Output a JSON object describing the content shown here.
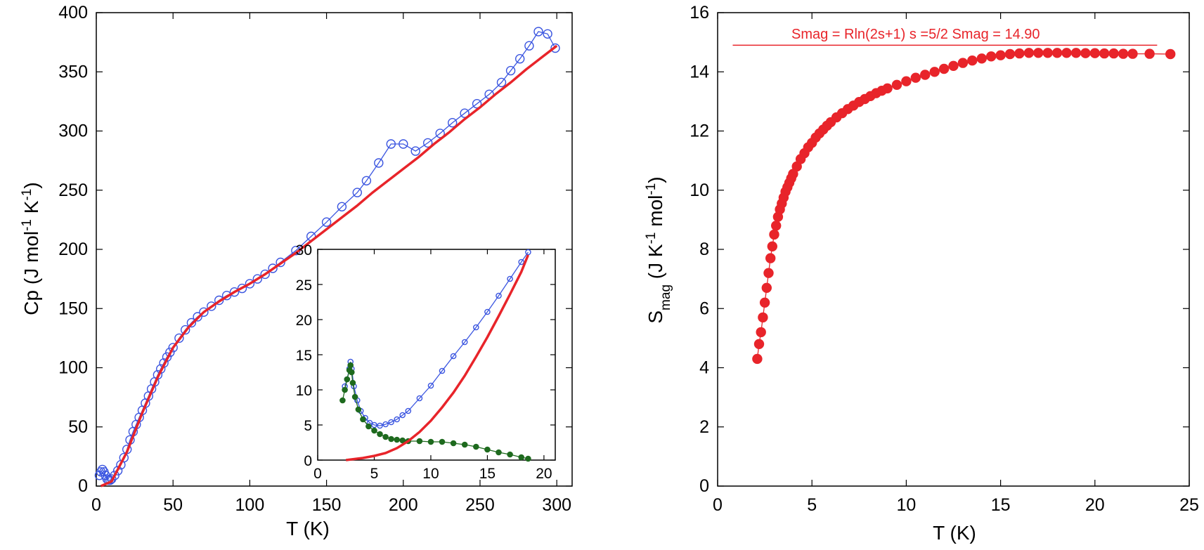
{
  "chart_data": [
    {
      "type": "scatter",
      "xlabel": "T (K)",
      "ylabel": "Cp (J mol-1 K-1)",
      "xlim": [
        0,
        310
      ],
      "ylim": [
        0,
        400
      ],
      "xticks": [
        "0",
        "50",
        "100",
        "150",
        "200",
        "250",
        "300"
      ],
      "yticks": [
        "0",
        "50",
        "100",
        "150",
        "200",
        "250",
        "300",
        "350",
        "400"
      ],
      "series": [
        {
          "color": "#3a55e0",
          "marker": "open-circle-with-line",
          "x": [
            2,
            3,
            4,
            5,
            6,
            7,
            8,
            9,
            10,
            12,
            14,
            16,
            18,
            20,
            22,
            24,
            26,
            28,
            30,
            32,
            34,
            36,
            38,
            40,
            42,
            44,
            46,
            48,
            50,
            54,
            58,
            62,
            66,
            70,
            75,
            80,
            85,
            90,
            95,
            100,
            105,
            110,
            115,
            120,
            130,
            140,
            150,
            160,
            170,
            176,
            184,
            192,
            200,
            208,
            216,
            224,
            232,
            240,
            248,
            256,
            264,
            270,
            276,
            282,
            288,
            294,
            299
          ],
          "y": [
            9,
            12,
            14,
            12,
            9,
            6,
            5,
            5,
            6,
            9,
            13,
            18,
            24,
            31,
            39,
            46,
            52,
            58,
            64,
            70,
            76,
            82,
            88,
            94,
            99,
            104,
            109,
            113,
            117,
            125,
            132,
            138,
            143,
            147,
            152,
            157,
            161,
            164,
            167,
            171,
            175,
            179,
            184,
            189,
            199,
            211,
            223,
            236,
            248,
            258,
            273,
            289,
            289,
            283,
            290,
            298,
            307,
            315,
            323,
            331,
            341,
            351,
            361,
            372,
            384,
            382,
            370
          ]
        },
        {
          "color": "#e8242a",
          "marker": "line",
          "x": [
            3,
            10,
            20,
            30,
            40,
            50,
            60,
            70,
            80,
            90,
            100,
            110,
            120,
            130,
            140,
            150,
            160,
            170,
            180,
            190,
            200,
            210,
            220,
            230,
            240,
            250,
            260,
            270,
            280,
            290,
            300
          ],
          "y": [
            0,
            4,
            29,
            62,
            92,
            117,
            134,
            147,
            156,
            164,
            171,
            179,
            188,
            197,
            207,
            217,
            227,
            237,
            248,
            258,
            268,
            278,
            289,
            299,
            310,
            320,
            331,
            341,
            352,
            362,
            372
          ]
        }
      ]
    },
    {
      "type": "scatter",
      "inset": true,
      "xlim": [
        0,
        21
      ],
      "ylim": [
        0,
        30
      ],
      "xticks": [
        "0",
        "5",
        "10",
        "15",
        "20"
      ],
      "yticks": [
        "0",
        "5",
        "10",
        "15",
        "20",
        "25",
        "30"
      ],
      "series": [
        {
          "color": "#3a55e0",
          "marker": "open-circle-with-line",
          "x": [
            2.4,
            2.6,
            2.8,
            2.9,
            3.0,
            3.2,
            3.5,
            3.8,
            4.2,
            4.6,
            5.0,
            5.5,
            6.0,
            6.5,
            7.0,
            7.5,
            8.0,
            9.0,
            10.0,
            11.0,
            12.0,
            13.0,
            14.0,
            15.0,
            16.0,
            17.0,
            18.0,
            18.6
          ],
          "y": [
            10.5,
            11.5,
            13,
            14,
            13,
            10.5,
            8.5,
            7,
            6,
            5.3,
            5,
            4.9,
            5.1,
            5.4,
            5.8,
            6.4,
            7.0,
            8.8,
            10.6,
            12.7,
            14.8,
            16.8,
            18.9,
            21.1,
            23.4,
            25.8,
            28.2,
            29.6
          ]
        },
        {
          "color": "#1e6a1e",
          "marker": "filled-circle",
          "x": [
            2.2,
            2.4,
            2.6,
            2.8,
            2.9,
            3.0,
            3.1,
            3.3,
            3.6,
            4.0,
            4.5,
            5.0,
            5.5,
            6.0,
            6.5,
            7.0,
            7.5,
            8.0,
            9.0,
            10.0,
            11.0,
            12.0,
            13.0,
            14.0,
            15.0,
            16.0,
            17.0,
            18.0,
            18.6
          ],
          "y": [
            8.5,
            10,
            11.5,
            12.8,
            13.5,
            12.5,
            11,
            9,
            7.2,
            5.8,
            4.8,
            4.2,
            3.7,
            3.3,
            3.0,
            2.9,
            2.8,
            2.7,
            2.7,
            2.6,
            2.6,
            2.4,
            2.2,
            1.9,
            1.5,
            1.1,
            0.8,
            0.4,
            0.2
          ]
        },
        {
          "color": "#e8242a",
          "marker": "line",
          "x": [
            2.5,
            4,
            5,
            6,
            7,
            8,
            9,
            10,
            11,
            12,
            13,
            14,
            15,
            16,
            17,
            18,
            18.6
          ],
          "y": [
            0,
            0.3,
            0.6,
            1.0,
            1.7,
            2.7,
            4.0,
            5.6,
            7.5,
            9.6,
            12.0,
            14.7,
            17.5,
            20.5,
            23.6,
            26.8,
            29.2
          ]
        }
      ]
    },
    {
      "type": "scatter",
      "xlabel": "T (K)",
      "ylabel": "S mag (J K-1 mol-1)",
      "xlim": [
        0,
        25
      ],
      "ylim": [
        0,
        16
      ],
      "xticks": [
        "0",
        "5",
        "10",
        "15",
        "20",
        "25"
      ],
      "yticks": [
        "0",
        "2",
        "4",
        "6",
        "8",
        "10",
        "12",
        "14",
        "16"
      ],
      "annotation": "Smag = Rln(2s+1)  s =5/2    Smag = 14.90",
      "reference_line": {
        "y": 14.9,
        "xrange": [
          0.8,
          23.3
        ],
        "color": "#e8242a"
      },
      "series": [
        {
          "color": "#e8242a",
          "marker": "filled-circle-with-line",
          "x": [
            2.1,
            2.2,
            2.3,
            2.4,
            2.5,
            2.6,
            2.7,
            2.8,
            2.9,
            3.0,
            3.1,
            3.2,
            3.3,
            3.4,
            3.5,
            3.6,
            3.7,
            3.8,
            3.9,
            4.0,
            4.2,
            4.4,
            4.6,
            4.8,
            5.0,
            5.2,
            5.4,
            5.6,
            5.8,
            6.0,
            6.3,
            6.6,
            6.9,
            7.2,
            7.5,
            7.8,
            8.1,
            8.4,
            8.7,
            9.0,
            9.5,
            10.0,
            10.5,
            11.0,
            11.5,
            12.0,
            12.5,
            13.0,
            13.5,
            14.0,
            14.5,
            15.0,
            15.5,
            16.0,
            16.5,
            17.0,
            17.5,
            18.0,
            18.5,
            19.0,
            19.5,
            20.0,
            20.5,
            21.0,
            21.5,
            22.0,
            22.9,
            24.0
          ],
          "y": [
            4.3,
            4.8,
            5.2,
            5.7,
            6.2,
            6.7,
            7.2,
            7.7,
            8.1,
            8.5,
            8.8,
            9.1,
            9.35,
            9.55,
            9.75,
            9.95,
            10.1,
            10.25,
            10.4,
            10.55,
            10.8,
            11.05,
            11.25,
            11.45,
            11.6,
            11.78,
            11.92,
            12.05,
            12.18,
            12.3,
            12.46,
            12.6,
            12.74,
            12.86,
            12.98,
            13.08,
            13.18,
            13.28,
            13.36,
            13.44,
            13.56,
            13.68,
            13.8,
            13.9,
            14.0,
            14.1,
            14.2,
            14.3,
            14.38,
            14.45,
            14.52,
            14.56,
            14.6,
            14.62,
            14.64,
            14.64,
            14.64,
            14.64,
            14.64,
            14.64,
            14.63,
            14.63,
            14.62,
            14.62,
            14.61,
            14.61,
            14.61,
            14.6
          ]
        }
      ]
    }
  ]
}
